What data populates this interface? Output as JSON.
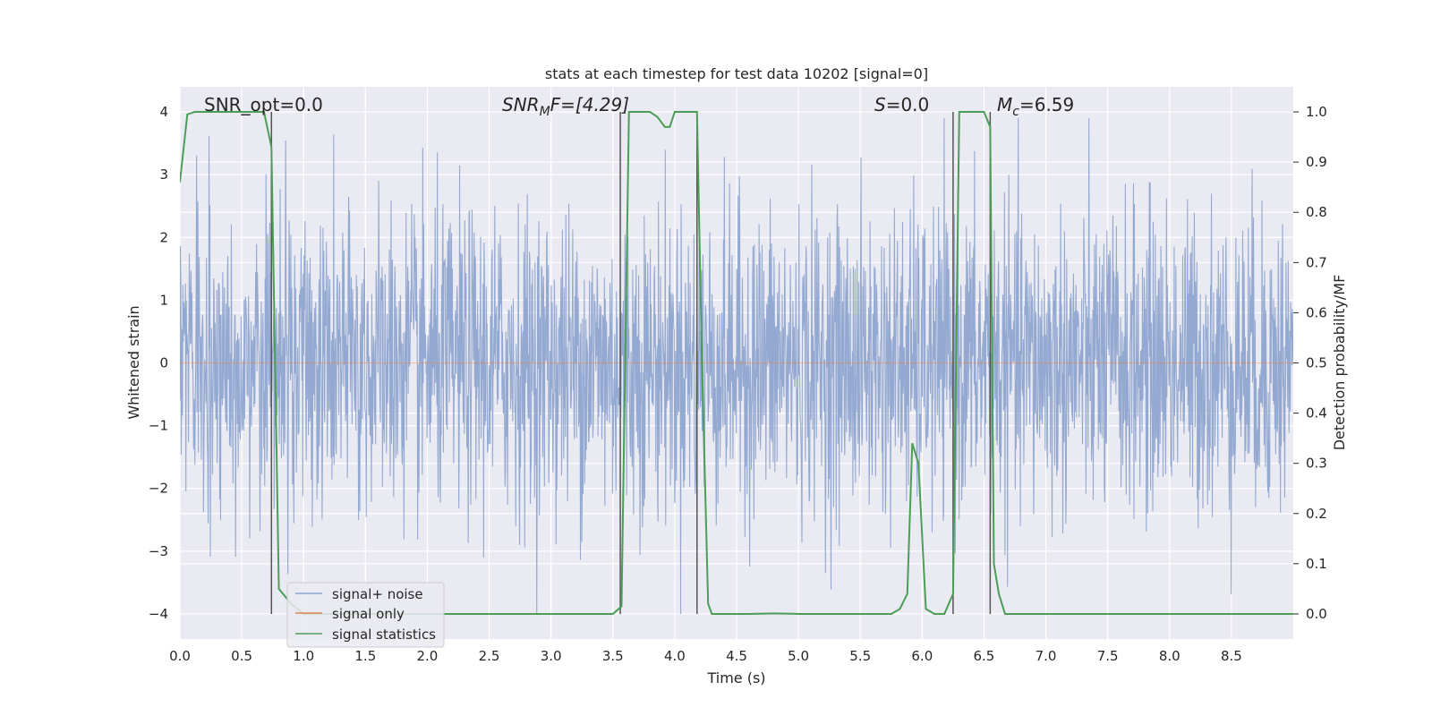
{
  "chart_data": {
    "type": "line",
    "title": "stats at each timestep for test data 10202 [signal=0]",
    "xlabel": "Time (s)",
    "ylabel": "Whitened strain",
    "y2label": "Detection probability/MF",
    "xlim": [
      0.0,
      9.0
    ],
    "ylim": [
      -4.4,
      4.4
    ],
    "y2lim": [
      -0.05,
      1.05
    ],
    "xticks": [
      "0.0",
      "0.5",
      "1.0",
      "1.5",
      "2.0",
      "2.5",
      "3.0",
      "3.5",
      "4.0",
      "4.5",
      "5.0",
      "5.5",
      "6.0",
      "6.5",
      "7.0",
      "7.5",
      "8.0",
      "8.5"
    ],
    "yticks": [
      "4",
      "3",
      "2",
      "1",
      "0",
      "−1",
      "−2",
      "−3",
      "−4"
    ],
    "y2ticks": [
      "1.0",
      "0.9",
      "0.8",
      "0.7",
      "0.6",
      "0.5",
      "0.4",
      "0.3",
      "0.2",
      "0.1",
      "0.0"
    ],
    "grid": true,
    "legend_placement": "lower-left",
    "annotations": {
      "snr_opt": "SNR_opt=0.0",
      "snr_mf_base": "SNR",
      "snr_mf_sub": "M",
      "snr_mf_rest": "F=[4.29]",
      "s_var": "S",
      "s_rest": "=0.0",
      "mc_base": "M",
      "mc_sub": "c",
      "mc_rest": "=6.59"
    },
    "vertical_lines": [
      0.74,
      3.56,
      4.18,
      6.25,
      6.55
    ],
    "series": [
      {
        "name": "signal+ noise",
        "color": "#8fa5cf",
        "kind": "noise",
        "amplitude_std": 1.2,
        "peak_max": 3.9,
        "trough_min": -4.0
      },
      {
        "name": "signal only",
        "color": "#dd8452",
        "kind": "flat",
        "value": 0.0
      },
      {
        "name": "signal statistics",
        "color": "#4c9e57",
        "axis": "right",
        "x": [
          0.0,
          0.06,
          0.12,
          0.3,
          0.5,
          0.68,
          0.74,
          0.8,
          0.9,
          1.0,
          2.0,
          3.0,
          3.5,
          3.57,
          3.63,
          3.7,
          3.8,
          3.86,
          3.92,
          3.96,
          4.0,
          4.1,
          4.18,
          4.22,
          4.27,
          4.3,
          4.6,
          4.8,
          5.0,
          5.5,
          5.75,
          5.82,
          5.88,
          5.92,
          5.97,
          6.03,
          6.1,
          6.18,
          6.25,
          6.3,
          6.35,
          6.4,
          6.5,
          6.55,
          6.58,
          6.62,
          6.67,
          7.0,
          8.0,
          9.0
        ],
        "y": [
          0.86,
          0.995,
          1.0,
          1.0,
          1.0,
          1.0,
          0.93,
          0.05,
          0.02,
          0.0,
          0.0,
          0.0,
          0.0,
          0.015,
          1.0,
          1.0,
          1.0,
          0.99,
          0.97,
          0.97,
          1.0,
          1.0,
          1.0,
          0.5,
          0.02,
          0.0,
          0.0,
          0.001,
          0.0,
          0.0,
          0.0,
          0.01,
          0.04,
          0.34,
          0.3,
          0.01,
          0.0,
          0.0,
          0.04,
          1.0,
          1.0,
          1.0,
          1.0,
          0.97,
          0.1,
          0.04,
          0.0,
          0.0,
          0.0,
          0.0
        ]
      }
    ]
  }
}
